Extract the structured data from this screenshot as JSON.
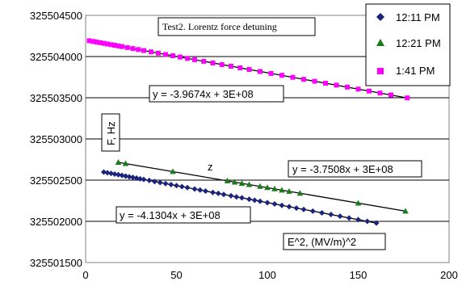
{
  "chart_data": {
    "type": "scatter",
    "title": "Test2. Lorentz force detuning",
    "ylabel": "F, Hz",
    "xlabel": "E^2, (MV/m)^2",
    "annotation": "z",
    "xlim": [
      0,
      200
    ],
    "ylim": [
      325501500,
      325504500
    ],
    "x_ticks": [
      "0",
      "50",
      "100",
      "150",
      "200"
    ],
    "y_ticks": [
      "325501500",
      "325502000",
      "325502500",
      "325503000",
      "325503500",
      "325504000",
      "325504500"
    ],
    "grid": "horizontal",
    "legend_position": "top-right",
    "series": [
      {
        "name": "12:11 PM",
        "color": "#1a237e",
        "marker": "diamond",
        "trendline": "y = -4.1304x + 3E+08",
        "x": [
          10,
          12,
          14,
          16,
          18,
          20,
          22,
          24,
          26,
          28,
          30,
          32,
          35,
          38,
          41,
          44,
          47,
          50,
          53,
          56,
          60,
          63,
          66,
          70,
          73,
          76,
          80,
          83,
          86,
          90,
          93,
          96,
          100,
          104,
          108,
          112,
          116,
          120,
          125,
          130,
          135,
          140,
          145,
          150,
          155,
          160
        ],
        "y": [
          325502598,
          325502590,
          325502582,
          325502574,
          325502566,
          325502557,
          325502549,
          325502541,
          325502533,
          325502524,
          325502516,
          325502508,
          325502496,
          325502483,
          325502471,
          325502458,
          325502446,
          325502434,
          325502421,
          325502409,
          325502392,
          325502380,
          325502368,
          325502351,
          325502339,
          325502326,
          325502310,
          325502297,
          325502285,
          325502268,
          325502256,
          325502244,
          325502227,
          325502211,
          325502194,
          325502178,
          325502161,
          325502145,
          325502124,
          325502103,
          325502083,
          325502062,
          325502041,
          325502021,
          325502000,
          325501979
        ]
      },
      {
        "name": "12:21 PM",
        "color": "#1b7a1b",
        "marker": "triangle",
        "trendline": "y = -3.7508x + 3E+08",
        "x": [
          18,
          22,
          48,
          78,
          82,
          86,
          90,
          96,
          100,
          104,
          108,
          112,
          118,
          150,
          176
        ],
        "y": [
          325502716,
          325502701,
          325502604,
          325502491,
          325502476,
          325502461,
          325502446,
          325502424,
          325502409,
          325502394,
          325502379,
          325502364,
          325502341,
          325502221,
          325502124
        ]
      },
      {
        "name": "1:41 PM",
        "color": "#ff00ff",
        "marker": "square",
        "trendline": "y = -3.9674x + 3E+08",
        "x": [
          2,
          4,
          6,
          8,
          10,
          12,
          14,
          16,
          18,
          20,
          23,
          26,
          29,
          32,
          36,
          40,
          44,
          48,
          52,
          56,
          60,
          65,
          70,
          75,
          80,
          85,
          90,
          96,
          102,
          108,
          114,
          120,
          126,
          132,
          138,
          144,
          150,
          156,
          162,
          168,
          177
        ],
        "y": [
          325504192,
          325504184,
          325504176,
          325504168,
          325504160,
          325504152,
          325504144,
          325504137,
          325504129,
          325504121,
          325504109,
          325504097,
          325504085,
          325504073,
          325504057,
          325504041,
          325504025,
          325504010,
          325503994,
          325503978,
          325503962,
          325503942,
          325503922,
          325503902,
          325503883,
          325503863,
          325503843,
          325503819,
          325503795,
          325503772,
          325503748,
          325503724,
          325503700,
          325503676,
          325503653,
          325503629,
          325503605,
          325503581,
          325503557,
          325503534,
          325503498
        ]
      }
    ]
  }
}
